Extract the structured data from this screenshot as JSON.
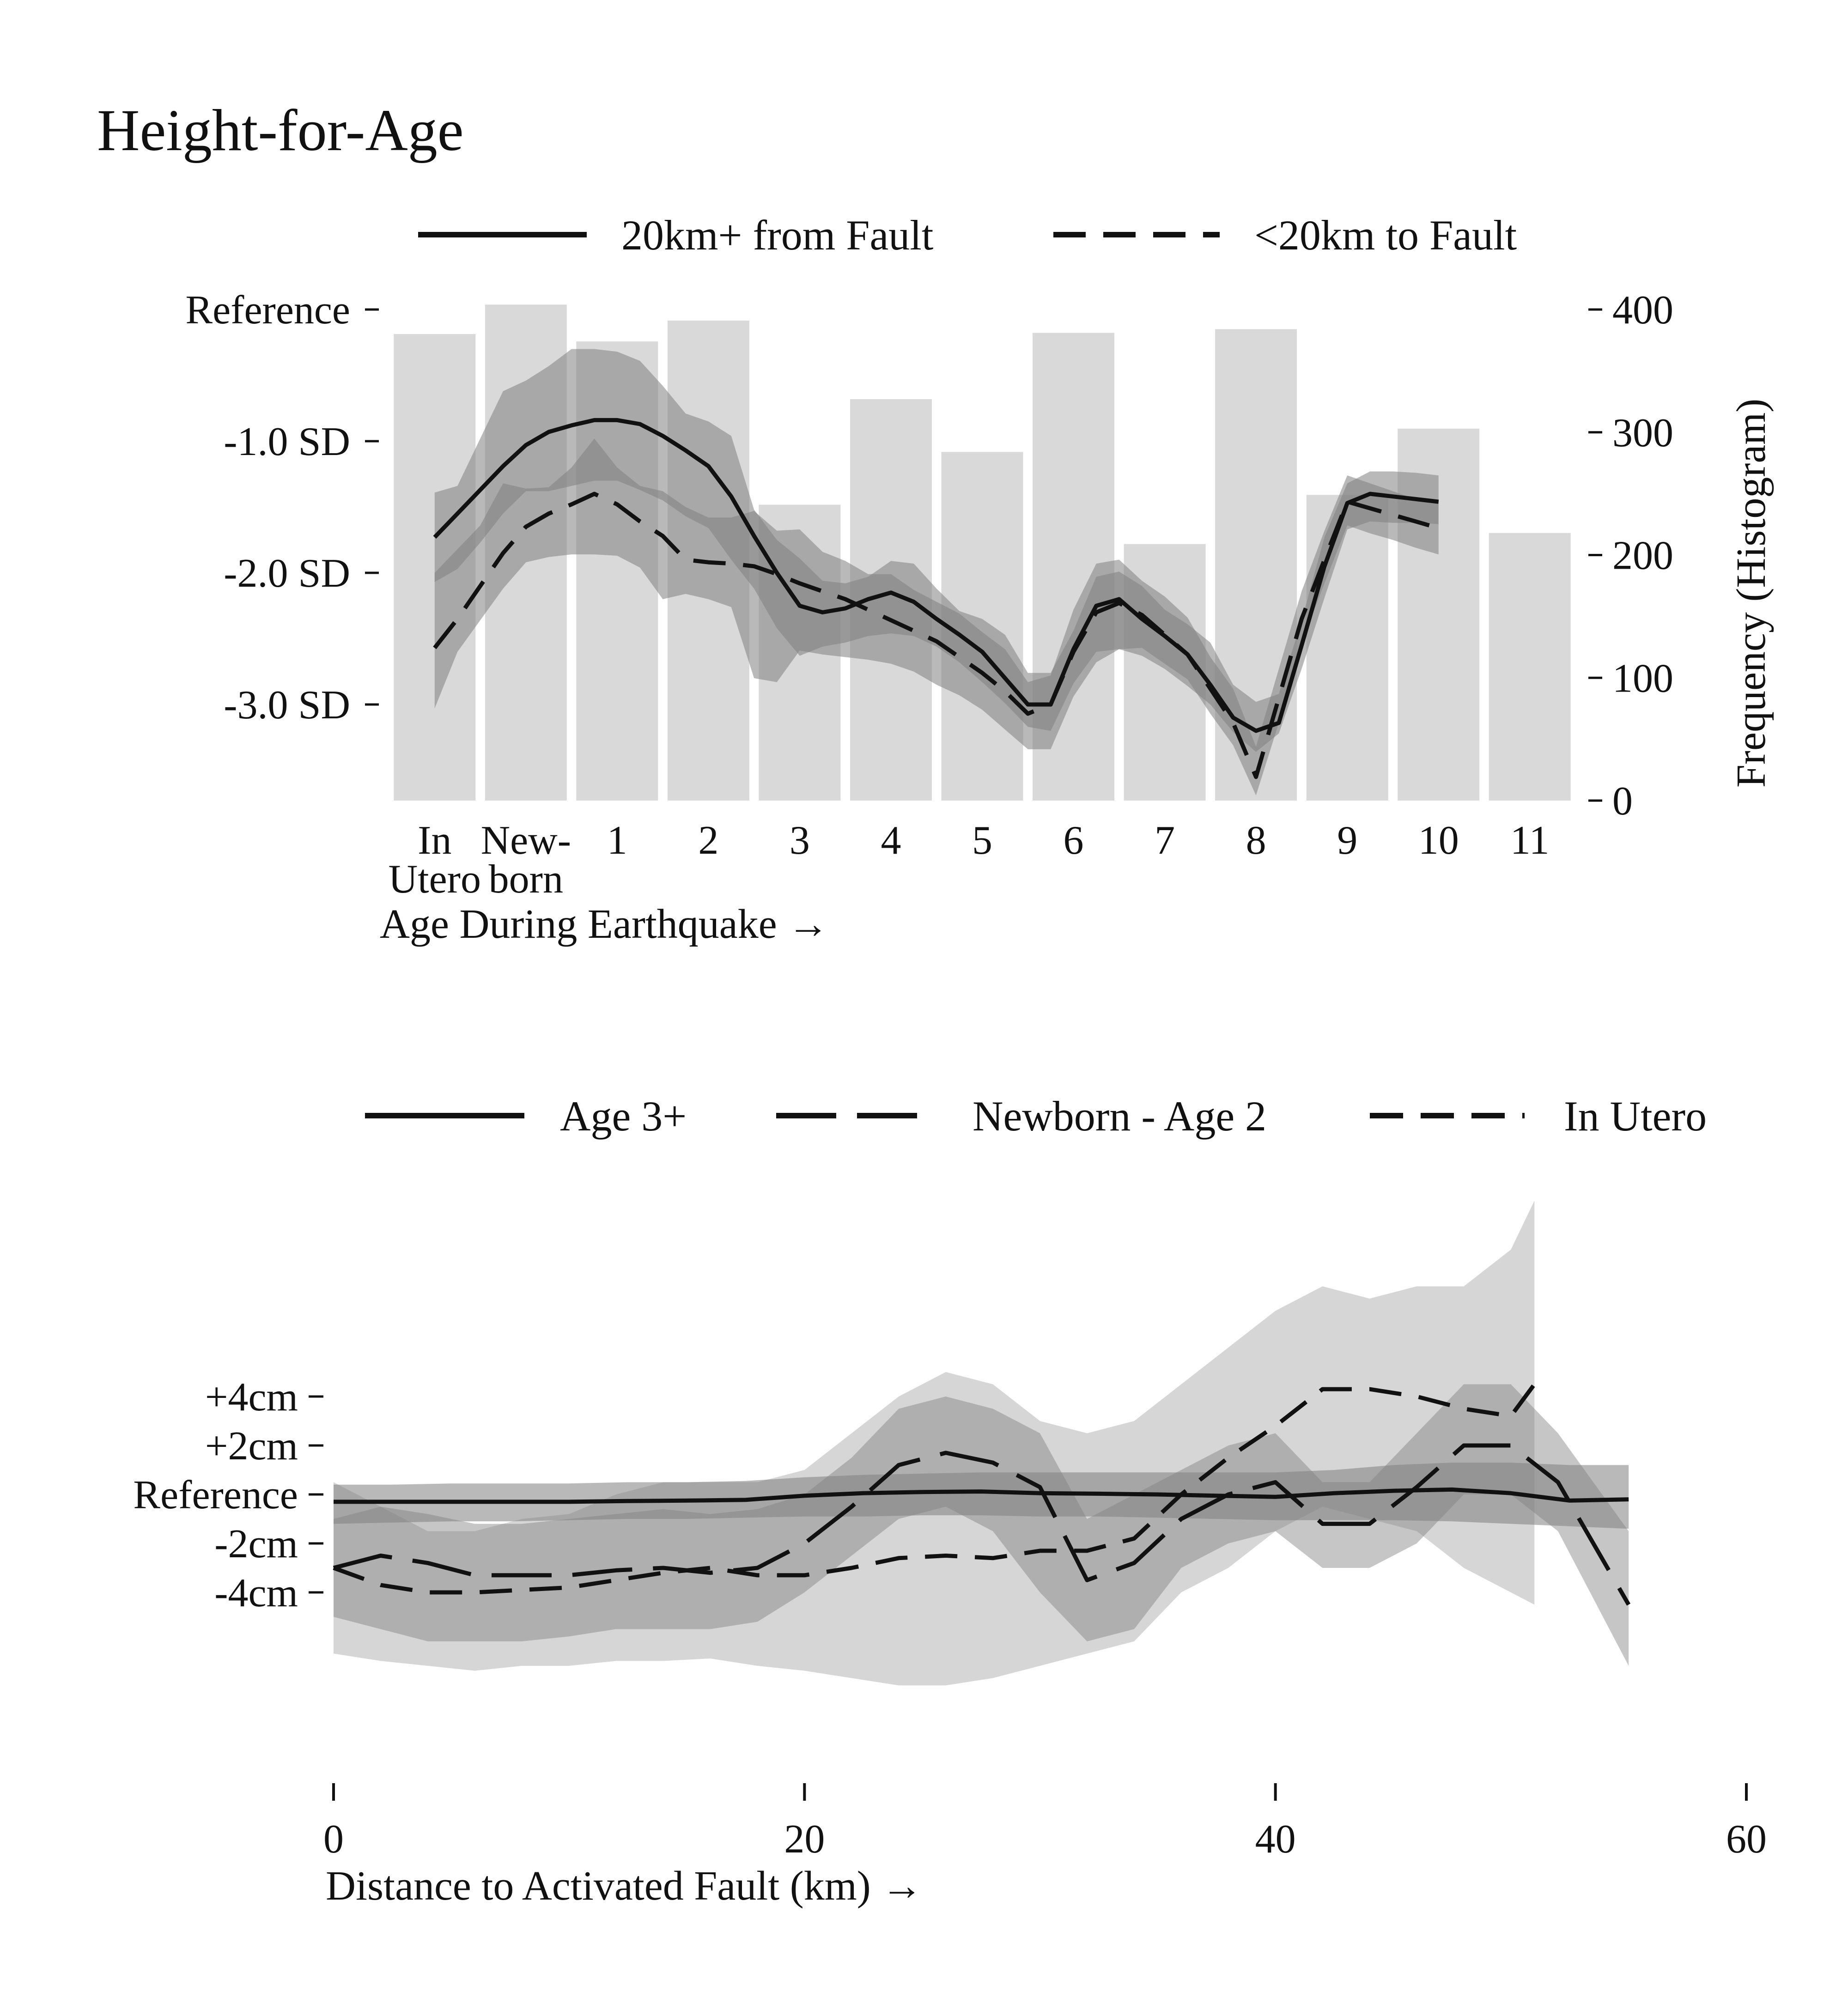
{
  "page": {
    "title": "Height-for-Age"
  },
  "colors": {
    "line": "#111111",
    "histogram": "#d9d9d9",
    "band_dark": "#808080",
    "band_light": "#c8c8c8"
  },
  "chart_data": [
    {
      "type": "line",
      "secondary_type": "bar",
      "legend": {
        "placement": "top",
        "entries": [
          {
            "label": "20km+ from Fault",
            "style": "solid"
          },
          {
            "label": "<20km to Fault",
            "style": "dashed"
          }
        ]
      },
      "categories": [
        "In\nUtero",
        "New-\nborn",
        "1",
        "2",
        "3",
        "4",
        "5",
        "6",
        "7",
        "8",
        "9",
        "10",
        "11"
      ],
      "xlabel": "Age During Earthquake →",
      "ylabel_right": "Frequency (Histogram)",
      "y_left_ticks": [
        {
          "value": 0.0,
          "label": "Reference"
        },
        {
          "value": -1.0,
          "label": "-1.0 SD"
        },
        {
          "value": -2.0,
          "label": "-2.0 SD"
        },
        {
          "value": -3.0,
          "label": "-3.0 SD"
        }
      ],
      "y_left_lim": [
        -3.8,
        0.0
      ],
      "y_right_ticks": [
        {
          "value": 400,
          "label": "400"
        },
        {
          "value": 300,
          "label": "300"
        },
        {
          "value": 200,
          "label": "200"
        },
        {
          "value": 100,
          "label": "100"
        },
        {
          "value": 0,
          "label": "0"
        }
      ],
      "y_right_lim": [
        0,
        400
      ],
      "histogram": [
        380,
        404,
        374,
        391,
        241,
        327,
        284,
        381,
        209,
        384,
        249,
        303,
        218
      ],
      "series": [
        {
          "name": "20km+ from Fault",
          "style": "solid",
          "x": [
            0,
            0.25,
            0.5,
            0.75,
            1,
            1.25,
            1.5,
            1.75,
            2,
            2.25,
            2.5,
            2.75,
            3,
            3.25,
            3.5,
            3.75,
            4,
            4.25,
            4.5,
            4.75,
            5,
            5.25,
            5.5,
            5.75,
            6,
            6.25,
            6.5,
            6.75,
            7,
            7.25,
            7.5,
            7.75,
            8,
            8.25,
            8.5,
            8.75,
            9,
            9.25,
            9.5,
            9.75,
            10,
            10.25,
            10.5,
            10.75,
            11
          ],
          "y": [
            -1.73,
            -1.55,
            -1.37,
            -1.19,
            -1.03,
            -0.93,
            -0.88,
            -0.84,
            -0.84,
            -0.87,
            -0.96,
            -1.07,
            -1.19,
            -1.42,
            -1.72,
            -2.0,
            -2.25,
            -2.3,
            -2.27,
            -2.2,
            -2.15,
            -2.22,
            -2.35,
            -2.47,
            -2.6,
            -2.8,
            -3.0,
            -3.0,
            -2.58,
            -2.25,
            -2.2,
            -2.35,
            -2.48,
            -2.62,
            -2.85,
            -3.1,
            -3.2,
            -3.14,
            -2.55,
            -1.95,
            -1.47,
            -1.4,
            -1.42,
            -1.44,
            -1.46
          ],
          "band_low": [
            -2.07,
            -1.97,
            -1.77,
            -1.55,
            -1.38,
            -1.38,
            -1.34,
            -1.3,
            -1.3,
            -1.37,
            -1.45,
            -1.57,
            -1.66,
            -1.9,
            -2.12,
            -2.42,
            -2.63,
            -2.56,
            -2.53,
            -2.48,
            -2.46,
            -2.48,
            -2.56,
            -2.68,
            -2.83,
            -2.99,
            -3.17,
            -3.2,
            -2.84,
            -2.6,
            -2.58,
            -2.63,
            -2.73,
            -2.86,
            -3.0,
            -3.21,
            -3.36,
            -3.22,
            -2.73,
            -2.19,
            -1.67,
            -1.61,
            -1.62,
            -1.62,
            -1.63
          ],
          "band_high": [
            -1.39,
            -1.34,
            -0.98,
            -0.62,
            -0.54,
            -0.43,
            -0.3,
            -0.3,
            -0.32,
            -0.39,
            -0.58,
            -0.79,
            -0.85,
            -0.96,
            -1.52,
            -1.75,
            -1.89,
            -2.06,
            -2.08,
            -2.03,
            -1.91,
            -1.93,
            -2.12,
            -2.29,
            -2.35,
            -2.47,
            -2.76,
            -2.76,
            -2.44,
            -2.03,
            -1.99,
            -2.1,
            -2.28,
            -2.39,
            -2.53,
            -2.85,
            -2.98,
            -2.92,
            -2.36,
            -1.73,
            -1.32,
            -1.23,
            -1.23,
            -1.24,
            -1.26
          ]
        },
        {
          "name": "<20km to Fault",
          "style": "dashed",
          "x": [
            0,
            0.25,
            0.5,
            0.75,
            1,
            1.25,
            1.5,
            1.75,
            2,
            2.25,
            2.5,
            2.75,
            3,
            3.25,
            3.5,
            3.75,
            4,
            4.25,
            4.5,
            4.75,
            5,
            5.25,
            5.5,
            5.75,
            6,
            6.25,
            6.5,
            6.75,
            7,
            7.25,
            7.5,
            7.75,
            8,
            8.25,
            8.5,
            8.75,
            9,
            9.25,
            9.5,
            9.75,
            10,
            10.25,
            10.5,
            10.75,
            11
          ],
          "y": [
            -2.57,
            -2.35,
            -2.1,
            -1.85,
            -1.65,
            -1.55,
            -1.48,
            -1.4,
            -1.48,
            -1.61,
            -1.72,
            -1.9,
            -1.92,
            -1.93,
            -1.95,
            -2.01,
            -2.08,
            -2.14,
            -2.2,
            -2.28,
            -2.36,
            -2.44,
            -2.52,
            -2.64,
            -2.76,
            -2.9,
            -3.07,
            -3.0,
            -2.6,
            -2.3,
            -2.23,
            -2.32,
            -2.47,
            -2.62,
            -2.88,
            -3.14,
            -3.55,
            -2.95,
            -2.35,
            -1.9,
            -1.46,
            -1.51,
            -1.56,
            -1.61,
            -1.66
          ],
          "band_low": [
            -3.03,
            -2.6,
            -2.36,
            -2.12,
            -1.92,
            -1.88,
            -1.86,
            -1.86,
            -1.87,
            -1.96,
            -2.2,
            -2.16,
            -2.2,
            -2.26,
            -2.8,
            -2.83,
            -2.59,
            -2.62,
            -2.64,
            -2.66,
            -2.69,
            -2.75,
            -2.85,
            -2.93,
            -3.04,
            -3.19,
            -3.34,
            -3.34,
            -2.94,
            -2.68,
            -2.58,
            -2.57,
            -2.69,
            -2.81,
            -3.07,
            -3.31,
            -3.69,
            -3.14,
            -2.53,
            -2.08,
            -1.64,
            -1.7,
            -1.75,
            -1.81,
            -1.86
          ],
          "band_high": [
            -2.0,
            -1.82,
            -1.64,
            -1.32,
            -1.36,
            -1.35,
            -1.2,
            -0.98,
            -1.2,
            -1.34,
            -1.38,
            -1.5,
            -1.58,
            -1.58,
            -1.53,
            -1.68,
            -1.67,
            -1.84,
            -1.91,
            -2.01,
            -2.01,
            -2.13,
            -2.22,
            -2.31,
            -2.45,
            -2.58,
            -2.83,
            -2.78,
            -2.28,
            -1.93,
            -1.9,
            -2.06,
            -2.18,
            -2.34,
            -2.64,
            -2.88,
            -3.32,
            -2.73,
            -2.14,
            -1.68,
            -1.26,
            -1.32,
            -1.38,
            -1.44,
            -1.46
          ]
        }
      ]
    },
    {
      "type": "line",
      "legend": {
        "placement": "top",
        "entries": [
          {
            "label": "Age 3+",
            "style": "solid"
          },
          {
            "label": "Newborn - Age 2",
            "style": "long-dash"
          },
          {
            "label": "In Utero",
            "style": "dashed"
          }
        ]
      },
      "xlabel": "Distance to Activated Fault (km) →",
      "xlim": [
        0,
        60
      ],
      "x_ticks": [
        0,
        20,
        40,
        60
      ],
      "y_ticks": [
        {
          "value": 4,
          "label": "+4cm"
        },
        {
          "value": 2,
          "label": "+2cm"
        },
        {
          "value": 0,
          "label": "Reference"
        },
        {
          "value": -2,
          "label": "-2cm"
        },
        {
          "value": -4,
          "label": "-4cm"
        }
      ],
      "ylim": [
        -12.3,
        11.3
      ],
      "series": [
        {
          "name": "Age 3+",
          "style": "solid",
          "x": [
            0,
            2.5,
            5,
            7.5,
            10,
            12.5,
            15,
            17.5,
            20,
            22.5,
            25,
            27.5,
            30,
            32.5,
            35,
            37.5,
            40,
            42.5,
            45,
            47.5,
            50,
            52.5,
            55
          ],
          "y": [
            -0.3,
            -0.3,
            -0.3,
            -0.3,
            -0.3,
            -0.27,
            -0.25,
            -0.22,
            -0.05,
            0.05,
            0.1,
            0.12,
            0.05,
            0.03,
            0.0,
            -0.05,
            -0.1,
            0.05,
            0.15,
            0.2,
            0.05,
            -0.25,
            -0.2
          ],
          "band_low": [
            -1.2,
            -1.15,
            -1.1,
            -1.1,
            -1.05,
            -1.0,
            -1.0,
            -0.95,
            -0.9,
            -0.9,
            -0.85,
            -0.85,
            -0.9,
            -0.9,
            -0.95,
            -1.0,
            -1.05,
            -1.05,
            -1.05,
            -1.1,
            -1.2,
            -1.3,
            -1.4
          ],
          "band_high": [
            0.4,
            0.4,
            0.45,
            0.45,
            0.45,
            0.5,
            0.5,
            0.55,
            0.7,
            0.8,
            0.85,
            0.9,
            0.9,
            0.9,
            0.9,
            0.9,
            0.9,
            1.0,
            1.2,
            1.3,
            1.3,
            1.2,
            1.2
          ]
        },
        {
          "name": "Newborn - Age 2",
          "style": "long-dash",
          "x": [
            0,
            2,
            4,
            6,
            8,
            10,
            12,
            14,
            16,
            18,
            20,
            22,
            24,
            26,
            28,
            30,
            32,
            34,
            36,
            38,
            40,
            42,
            44,
            46,
            48,
            50,
            52,
            55
          ],
          "y": [
            -3.0,
            -2.5,
            -2.8,
            -3.3,
            -3.3,
            -3.3,
            -3.1,
            -3.0,
            -3.2,
            -3.0,
            -2.0,
            -0.5,
            1.2,
            1.7,
            1.3,
            0.3,
            -3.5,
            -2.8,
            -1.0,
            0.0,
            0.5,
            -1.2,
            -1.2,
            0.3,
            2.0,
            2.0,
            0.5,
            -4.5
          ],
          "band_low": [
            -5.0,
            -5.5,
            -6.0,
            -6.0,
            -6.0,
            -5.8,
            -5.5,
            -5.5,
            -5.5,
            -5.2,
            -4.0,
            -2.5,
            -1.0,
            -0.5,
            -1.5,
            -4.0,
            -6.0,
            -5.5,
            -3.0,
            -2.0,
            -1.5,
            -3.0,
            -3.0,
            -2.0,
            0.0,
            0.0,
            -1.5,
            -7.0
          ],
          "band_high": [
            -1.0,
            -0.5,
            -0.8,
            -1.2,
            -1.2,
            -1.0,
            -0.8,
            -0.6,
            -0.8,
            -0.6,
            0.0,
            1.5,
            3.5,
            4.0,
            3.5,
            2.5,
            -1.0,
            0.0,
            1.0,
            2.0,
            2.5,
            0.5,
            0.5,
            2.5,
            4.5,
            4.5,
            2.5,
            -1.5
          ]
        },
        {
          "name": "In Utero",
          "style": "dashed",
          "x": [
            0,
            2,
            4,
            6,
            8,
            10,
            12,
            14,
            16,
            18,
            20,
            22,
            24,
            26,
            28,
            30,
            32,
            34,
            36,
            38,
            40,
            42,
            44,
            46,
            48,
            50,
            51
          ],
          "y": [
            -3.0,
            -3.7,
            -4.0,
            -4.0,
            -3.9,
            -3.8,
            -3.5,
            -3.2,
            -3.0,
            -3.3,
            -3.3,
            -3.0,
            -2.6,
            -2.5,
            -2.6,
            -2.3,
            -2.3,
            -1.8,
            0.0,
            1.5,
            2.8,
            4.3,
            4.3,
            4.0,
            3.5,
            3.2,
            4.5
          ],
          "band_low": [
            -6.5,
            -6.8,
            -7.0,
            -7.2,
            -7.0,
            -7.0,
            -6.8,
            -6.8,
            -6.7,
            -7.0,
            -7.2,
            -7.5,
            -7.8,
            -7.8,
            -7.5,
            -7.0,
            -6.5,
            -6.0,
            -4.0,
            -3.0,
            -1.5,
            -0.5,
            -1.0,
            -1.5,
            -3.0,
            -4.0,
            -4.5
          ],
          "band_high": [
            0.5,
            -0.5,
            -1.5,
            -1.5,
            -1.0,
            -0.8,
            0.0,
            0.5,
            0.5,
            0.5,
            1.0,
            2.5,
            4.0,
            5.0,
            4.5,
            3.0,
            2.5,
            3.0,
            4.5,
            6.0,
            7.5,
            8.5,
            8.0,
            8.5,
            8.5,
            10.0,
            12.0
          ]
        }
      ]
    }
  ]
}
